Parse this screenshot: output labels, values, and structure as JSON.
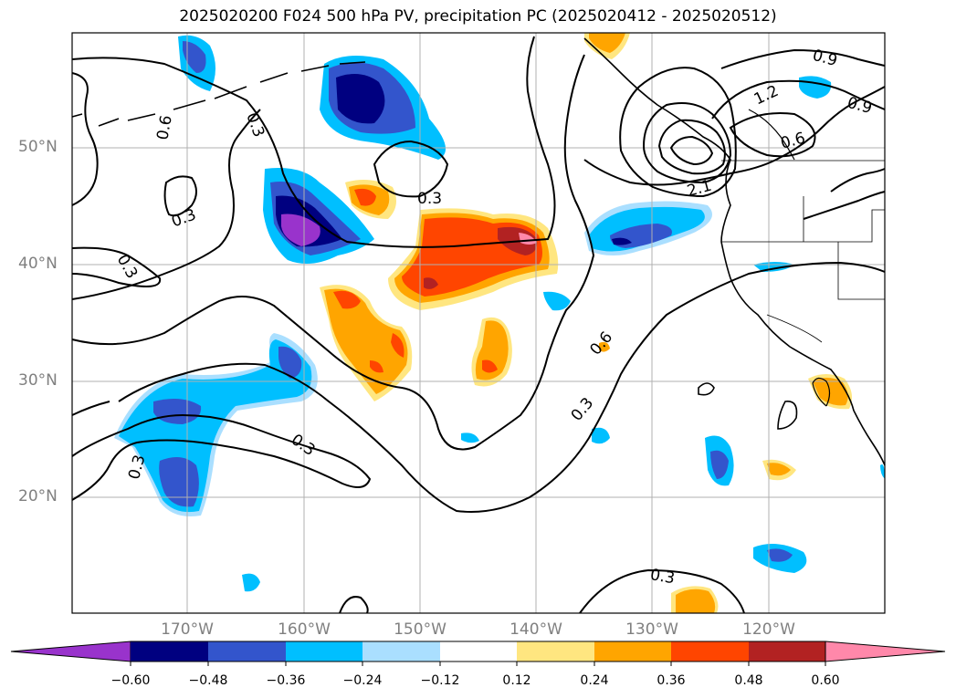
{
  "title": "2025020200 F024 500 hPa PV, precipitation PC (2025020412 - 2025020512)",
  "lat_labels": [
    "50°N",
    "40°N",
    "30°N",
    "20°N"
  ],
  "lon_labels": [
    "170°W",
    "160°W",
    "150°W",
    "140°W",
    "130°W",
    "120°W"
  ],
  "contour_labels": [
    "0.6",
    "0.3",
    "0.3",
    "0.3",
    "0.3",
    "0.3",
    "0.3",
    "0.3",
    "0.3",
    "0.6",
    "0.9",
    "0.9",
    "1.2",
    "0.6",
    "2.1"
  ],
  "colorbar": {
    "ticks": [
      "−0.60",
      "−0.48",
      "−0.36",
      "−0.24",
      "−0.12",
      "0.12",
      "0.24",
      "0.36",
      "0.48",
      "0.60"
    ],
    "colors": [
      "#9933cc",
      "#000080",
      "#3355cc",
      "#00bfff",
      "#aadfff",
      "#ffffff",
      "#ffe680",
      "#ffa500",
      "#ff4500",
      "#b22222",
      "#ff88aa"
    ]
  },
  "legend_colors": {
    "neg_extreme": "#9933cc",
    "neg_strong": "#000080",
    "neg_mid": "#3355cc",
    "neg_light": "#00bfff",
    "neg_faint": "#aadfff",
    "pos_faint": "#ffe680",
    "pos_light": "#ffa500",
    "pos_mid": "#ff4500",
    "pos_strong": "#b22222",
    "pos_extreme": "#ff88aa"
  }
}
